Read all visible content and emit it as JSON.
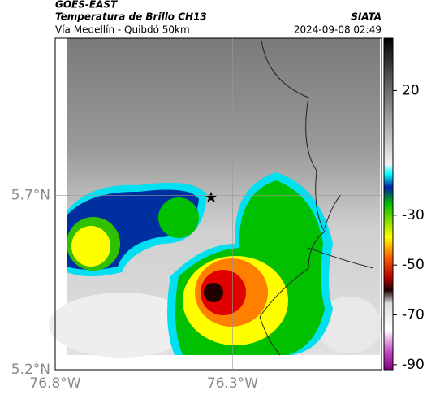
{
  "header": {
    "title": "GOES-EAST",
    "subtitle": "Temperatura de Brillo CH13",
    "source": "SIATA",
    "route": "Vía Medellín - Quibdó 50km",
    "timestamp": "2024-09-08 02:49"
  },
  "map": {
    "xlim": [
      -76.8,
      -75.88
    ],
    "ylim": [
      5.2,
      6.15
    ],
    "xticks": [
      {
        "value": -76.8,
        "label": "76.8°W"
      },
      {
        "value": -76.3,
        "label": "76.3°W"
      }
    ],
    "yticks": [
      {
        "value": 5.7,
        "label": "5.7°N"
      },
      {
        "value": 5.2,
        "label": "5.2°N"
      }
    ]
  },
  "colorbar": {
    "lim": [
      -92,
      41
    ],
    "ticks": [
      20,
      -30,
      -50,
      -70,
      -90
    ]
  }
}
